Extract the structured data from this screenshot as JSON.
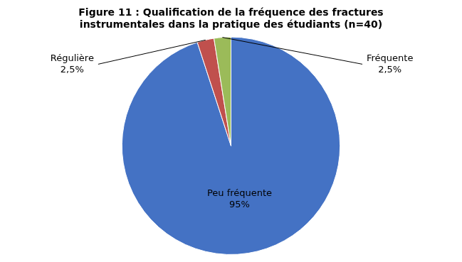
{
  "chart_data": {
    "type": "pie",
    "title": "Figure 11 : Qualification de la fréquence des fractures\ninstrumentales dans la pratique des étudiants (n=40)",
    "categories": [
      "Peu fréquente",
      "Régulière",
      "Fréquente"
    ],
    "values": [
      95,
      2.5,
      2.5
    ],
    "value_labels": [
      "95%",
      "2,5%",
      "2,5%"
    ],
    "colors": [
      "#4472C4",
      "#C0504D",
      "#9BBB59"
    ],
    "data_labels": true
  }
}
